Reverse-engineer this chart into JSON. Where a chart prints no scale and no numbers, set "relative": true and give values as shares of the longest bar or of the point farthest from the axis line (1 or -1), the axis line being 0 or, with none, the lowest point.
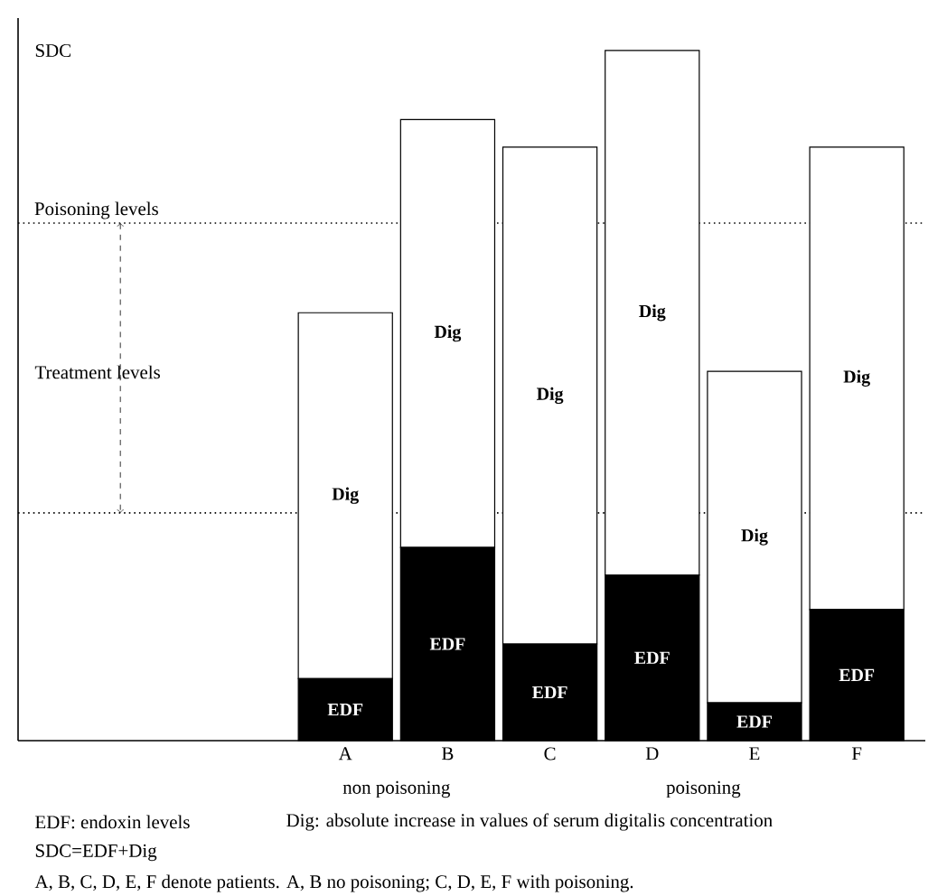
{
  "chart_data": {
    "type": "bar",
    "stacked": true,
    "relative": true,
    "categories": [
      "A",
      "B",
      "C",
      "D",
      "E",
      "F"
    ],
    "series": [
      {
        "name": "EDF",
        "color": "#000000",
        "values": [
          0.09,
          0.28,
          0.14,
          0.24,
          0.055,
          0.19
        ]
      },
      {
        "name": "Dig",
        "color": "#ffffff",
        "values": [
          0.53,
          0.62,
          0.72,
          0.76,
          0.48,
          0.67
        ]
      }
    ],
    "ref_lines": [
      {
        "axis": "y",
        "value": 0.75,
        "label": "Poisoning levels",
        "line_style": "dotted"
      },
      {
        "axis": "y",
        "value": 0.33,
        "line_style": "dotted"
      }
    ],
    "annotations": [
      "SDC",
      "Treatment levels",
      "non poisoning",
      "poisoning",
      "EDF: endoxin levels",
      "Dig: absolute increase in values of serum digitalis concentration",
      "SDC=EDF+Dig",
      "A, B, C, D, E, F denote patients. A, B no poisoning; C, D, E, F with poisoning."
    ]
  }
}
